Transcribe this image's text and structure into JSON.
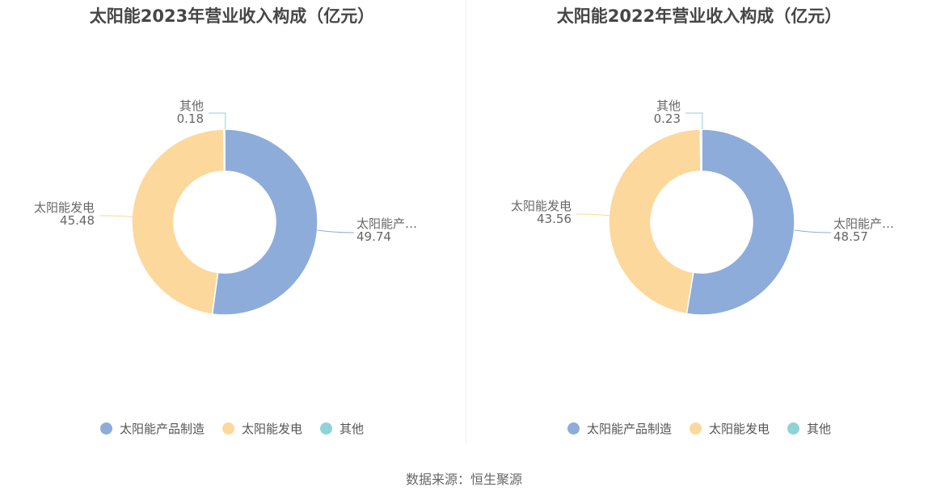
{
  "colors": {
    "solar_products": "#8EACDA",
    "solar_power": "#FDD89C",
    "other": "#8DD3D8"
  },
  "chart_data": [
    {
      "type": "pie",
      "title": "太阳能2023年营业收入构成（亿元）",
      "slices": [
        {
          "name": "太阳能产品制造",
          "label": "太阳能产…",
          "value": 49.74,
          "value_text": "49.74"
        },
        {
          "name": "太阳能发电",
          "label": "太阳能发电",
          "value": 45.48,
          "value_text": "45.48"
        },
        {
          "name": "其他",
          "label": "其他",
          "value": 0.18,
          "value_text": "0.18"
        }
      ],
      "legend": [
        "太阳能产品制造",
        "太阳能发电",
        "其他"
      ],
      "legend_position": "bottom"
    },
    {
      "type": "pie",
      "title": "太阳能2022年营业收入构成（亿元）",
      "slices": [
        {
          "name": "太阳能产品制造",
          "label": "太阳能产…",
          "value": 48.57,
          "value_text": "48.57"
        },
        {
          "name": "太阳能发电",
          "label": "太阳能发电",
          "value": 43.56,
          "value_text": "43.56"
        },
        {
          "name": "其他",
          "label": "其他",
          "value": 0.23,
          "value_text": "0.23"
        }
      ],
      "legend": [
        "太阳能产品制造",
        "太阳能发电",
        "其他"
      ],
      "legend_position": "bottom"
    }
  ],
  "source": "数据来源：恒生聚源"
}
